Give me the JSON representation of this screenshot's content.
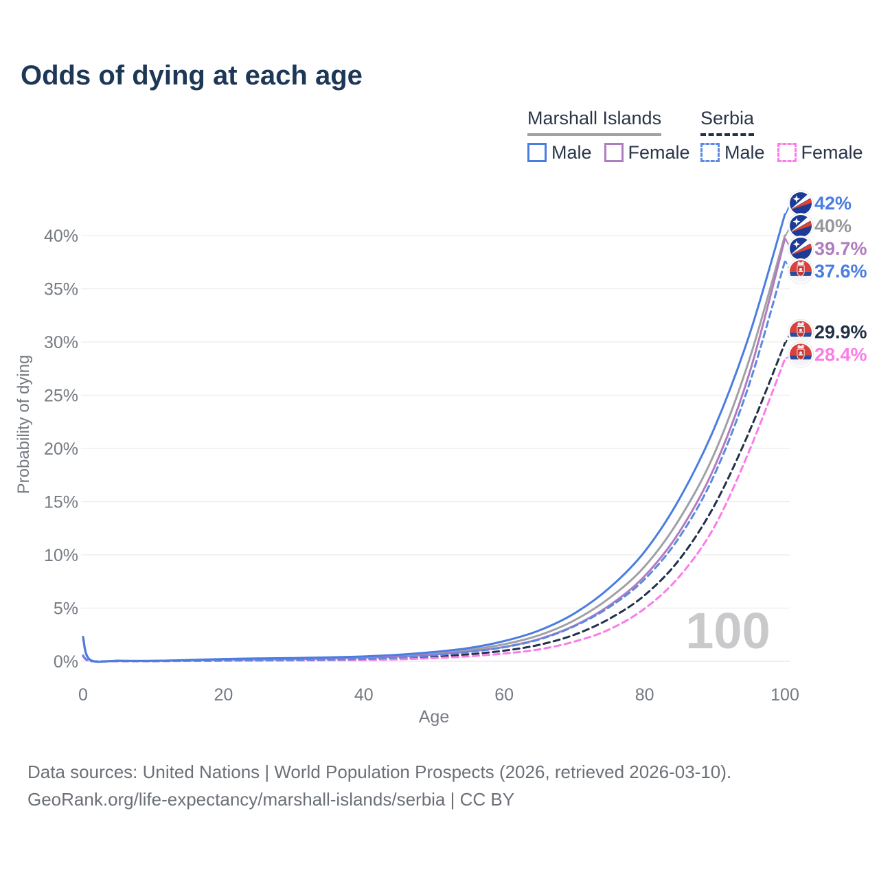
{
  "title": "Odds of dying at each age",
  "legend": {
    "groups": [
      {
        "name": "Marshall Islands",
        "line_style": "solid",
        "underline_color": "#a0a0a5",
        "male_label": "Male",
        "female_label": "Female",
        "male_color": "#4a7de0",
        "female_color": "#b07cc0"
      },
      {
        "name": "Serbia",
        "line_style": "dashed",
        "underline_color": "#1d3350",
        "male_label": "Male",
        "female_label": "Female",
        "male_color": "#5b8ae0",
        "female_color": "#fb7ce8"
      }
    ]
  },
  "chart_data": {
    "type": "line",
    "title": "Odds of dying at each age",
    "xlabel": "Age",
    "ylabel": "Probability of dying",
    "xlim": [
      0,
      100
    ],
    "ylim": [
      0,
      43
    ],
    "grid": "horizontal",
    "legend_position": "top-right",
    "watermark": "100",
    "xticks": [
      0,
      20,
      40,
      60,
      80,
      100
    ],
    "yticks": {
      "values": [
        0,
        5,
        10,
        15,
        20,
        25,
        30,
        35,
        40
      ],
      "labels": [
        "0%",
        "5%",
        "10%",
        "15%",
        "20%",
        "25%",
        "30%",
        "35%",
        "40%"
      ]
    },
    "x": [
      0,
      1,
      5,
      10,
      15,
      20,
      25,
      30,
      35,
      40,
      45,
      50,
      55,
      60,
      65,
      70,
      75,
      80,
      85,
      90,
      95,
      100
    ],
    "series": [
      {
        "name": "Marshall Islands Male",
        "country": "Marshall Islands",
        "sex": "Male",
        "color": "#4a7de0",
        "line_style": "solid",
        "flag": "marshall-islands",
        "end_label": "42%",
        "label_color": "#4a7de0",
        "values": [
          2.3,
          0.15,
          0.06,
          0.05,
          0.12,
          0.22,
          0.27,
          0.31,
          0.37,
          0.46,
          0.62,
          0.88,
          1.25,
          1.9,
          2.9,
          4.5,
          6.9,
          10.3,
          15.3,
          22.0,
          30.8,
          42.0
        ]
      },
      {
        "name": "Marshall Islands (both sexes)",
        "country": "Marshall Islands",
        "sex": "All",
        "color": "#a0a0a5",
        "line_style": "solid",
        "flag": "marshall-islands",
        "end_label": "40%",
        "label_color": "#97979c",
        "values": [
          2.2,
          0.14,
          0.05,
          0.05,
          0.1,
          0.18,
          0.22,
          0.26,
          0.31,
          0.4,
          0.53,
          0.75,
          1.08,
          1.6,
          2.45,
          3.85,
          5.95,
          8.9,
          13.4,
          19.6,
          28.5,
          40.0
        ]
      },
      {
        "name": "Marshall Islands Female",
        "country": "Marshall Islands",
        "sex": "Female",
        "color": "#b07cc0",
        "line_style": "solid",
        "flag": "marshall-islands",
        "end_label": "39.7%",
        "label_color": "#b07cc0",
        "values": [
          2.1,
          0.13,
          0.05,
          0.04,
          0.08,
          0.14,
          0.17,
          0.21,
          0.26,
          0.34,
          0.45,
          0.63,
          0.92,
          1.35,
          2.1,
          3.35,
          5.25,
          8.0,
          12.2,
          18.3,
          27.2,
          39.7
        ]
      },
      {
        "name": "Serbia Male",
        "country": "Serbia",
        "sex": "Male",
        "color": "#5b8ae0",
        "line_style": "dashed",
        "flag": "serbia",
        "end_label": "37.6%",
        "label_color": "#4a7de0",
        "values": [
          0.55,
          0.04,
          0.02,
          0.02,
          0.05,
          0.08,
          0.1,
          0.12,
          0.16,
          0.22,
          0.35,
          0.56,
          0.88,
          1.32,
          2.05,
          3.3,
          5.1,
          7.7,
          11.7,
          17.6,
          26.2,
          37.6
        ]
      },
      {
        "name": "Serbia (both sexes)",
        "country": "Serbia",
        "sex": "All",
        "color": "#223049",
        "line_style": "dashed",
        "flag": "serbia",
        "end_label": "29.9%",
        "label_color": "#232f45",
        "values": [
          0.5,
          0.03,
          0.02,
          0.02,
          0.04,
          0.06,
          0.08,
          0.1,
          0.13,
          0.18,
          0.27,
          0.43,
          0.66,
          1.0,
          1.55,
          2.5,
          4.0,
          6.2,
          9.6,
          14.7,
          21.7,
          29.9
        ]
      },
      {
        "name": "Serbia Female",
        "country": "Serbia",
        "sex": "Female",
        "color": "#fb7ce8",
        "line_style": "dashed",
        "flag": "serbia",
        "end_label": "28.4%",
        "label_color": "#fb7ce8",
        "values": [
          0.45,
          0.03,
          0.01,
          0.01,
          0.03,
          0.05,
          0.06,
          0.08,
          0.1,
          0.13,
          0.19,
          0.3,
          0.47,
          0.73,
          1.12,
          1.85,
          3.0,
          4.95,
          8.0,
          12.7,
          19.9,
          28.4
        ]
      }
    ],
    "flag_colors": {
      "marshall_islands": {
        "blue": "#1c3b97",
        "stripe_white": "#ffffff",
        "stripe_red": "#e0432f"
      },
      "serbia": {
        "red": "#d8413e",
        "blue": "#2c4a9c",
        "white": "#f4f4f6",
        "shield_red": "#c8362f"
      }
    }
  },
  "footer": {
    "line1": "Data sources: United Nations | World Population Prospects (2026, retrieved 2026-03-10).",
    "line2": "GeoRank.org/life-expectancy/marshall-islands/serbia | CC BY"
  }
}
